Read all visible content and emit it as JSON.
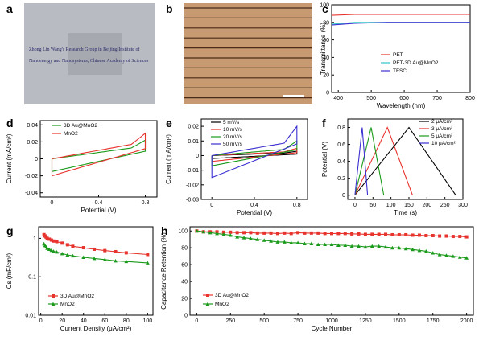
{
  "panel_labels": [
    "a",
    "b",
    "c",
    "d",
    "e",
    "f",
    "g",
    "h"
  ],
  "photo_a": {
    "lines": [
      "Zhong Lin Wang's Research Group in Beijing Institute of",
      "Nanoenergy and Nanosystems, Chinese Academy of Sciences"
    ]
  },
  "colors": {
    "red": "#e8322c",
    "teal": "#2ec4c6",
    "blue": "#3a2fd0",
    "green": "#1a9a1a",
    "black": "#000000"
  },
  "chart_data": [
    {
      "id": "c",
      "type": "line",
      "ylabel": "Transmittance (%)",
      "xlabel": "Wavelength (nm)",
      "xlim": [
        380,
        800
      ],
      "ylim": [
        0,
        100
      ],
      "xticks": [
        400,
        500,
        600,
        700,
        800
      ],
      "yticks": [
        0,
        20,
        40,
        60,
        80,
        100
      ],
      "series": [
        {
          "name": "PET",
          "color": "red",
          "x": [
            380,
            450,
            550,
            650,
            800
          ],
          "y": [
            88,
            89,
            89,
            89,
            89
          ]
        },
        {
          "name": "PET-3D Au@MnO2",
          "color": "teal",
          "x": [
            380,
            450,
            550,
            650,
            800
          ],
          "y": [
            78,
            80,
            80,
            80,
            80
          ]
        },
        {
          "name": "TFSC",
          "color": "blue",
          "x": [
            380,
            450,
            550,
            650,
            800
          ],
          "y": [
            77,
            79,
            80,
            80,
            80
          ]
        }
      ]
    },
    {
      "id": "d",
      "type": "line",
      "ylabel": "Current (mA/cm²)",
      "xlabel": "Potential (V)",
      "xlim": [
        -0.1,
        0.9
      ],
      "ylim": [
        -0.045,
        0.045
      ],
      "xticks": [
        0.0,
        0.4,
        0.8
      ],
      "yticks": [
        -0.04,
        -0.02,
        0.0,
        0.02,
        0.04
      ],
      "series": [
        {
          "name": "3D Au@MnO2",
          "color": "green",
          "type": "cv",
          "forward_start": 0.0,
          "forward_end": 0.015,
          "reverse_start": -0.015,
          "reverse_end": 0.009,
          "peak": 0.022
        },
        {
          "name": "MnO2",
          "color": "red",
          "type": "cv",
          "forward_start": 0.0,
          "forward_end": 0.02,
          "reverse_start": -0.02,
          "reverse_end": 0.012,
          "peak": 0.03
        }
      ]
    },
    {
      "id": "e",
      "type": "line",
      "ylabel": "Current (mA/cm²)",
      "xlabel": "Potential (V)",
      "xlim": [
        -0.1,
        0.9
      ],
      "ylim": [
        -0.03,
        0.025
      ],
      "xticks": [
        0.0,
        0.4,
        0.8
      ],
      "yticks": [
        -0.03,
        -0.02,
        -0.01,
        0.0,
        0.01,
        0.02
      ],
      "series": [
        {
          "name": "5 mV/s",
          "color": "black",
          "type": "cv",
          "forward_start": 0.0,
          "forward_end": 0.002,
          "reverse_start": -0.002,
          "reverse_end": 0.001,
          "peak": 0.003
        },
        {
          "name": "10 mV/s",
          "color": "red",
          "type": "cv",
          "forward_start": 0.0,
          "forward_end": 0.003,
          "reverse_start": -0.004,
          "reverse_end": 0.002,
          "peak": 0.005
        },
        {
          "name": "20 mV/s",
          "color": "green",
          "type": "cv",
          "forward_start": 0.0,
          "forward_end": 0.005,
          "reverse_start": -0.007,
          "reverse_end": 0.004,
          "peak": 0.01
        },
        {
          "name": "50 mV/s",
          "color": "blue",
          "type": "cv",
          "forward_start": 0.0,
          "forward_end": 0.01,
          "reverse_start": -0.015,
          "reverse_end": 0.008,
          "peak": 0.02
        }
      ]
    },
    {
      "id": "f",
      "type": "line",
      "ylabel": "Potential (V)",
      "xlabel": "Time (s)",
      "xlim": [
        -20,
        300
      ],
      "ylim": [
        -0.05,
        0.9
      ],
      "xticks": [
        0,
        50,
        100,
        150,
        200,
        250,
        300
      ],
      "yticks": [
        0.0,
        0.2,
        0.4,
        0.6,
        0.8
      ],
      "series": [
        {
          "name": "2 μA/cm²",
          "color": "black",
          "x": [
            0,
            150,
            280
          ],
          "y": [
            0,
            0.8,
            0
          ]
        },
        {
          "name": "3 μA/cm²",
          "color": "red",
          "x": [
            0,
            90,
            160
          ],
          "y": [
            0,
            0.8,
            0
          ]
        },
        {
          "name": "5 μA/cm²",
          "color": "green",
          "x": [
            0,
            45,
            80
          ],
          "y": [
            0,
            0.8,
            0
          ]
        },
        {
          "name": "10 μA/cm²",
          "color": "blue",
          "x": [
            0,
            20,
            35
          ],
          "y": [
            0,
            0.8,
            0
          ]
        }
      ]
    },
    {
      "id": "g",
      "type": "scatter",
      "ylabel": "Cs (mF/cm²)",
      "xlabel": "Current Density (μA/cm²)",
      "xlim": [
        -2,
        105
      ],
      "ylog": true,
      "ylim": [
        0.01,
        2
      ],
      "xticks": [
        0,
        20,
        40,
        60,
        80,
        100
      ],
      "yticks": [
        0.01,
        0.1,
        1
      ],
      "ytick_labels": [
        "0.01",
        "0.1",
        "1"
      ],
      "series": [
        {
          "name": "3D Au@MnO2",
          "color": "red",
          "marker": "square",
          "x": [
            3,
            4,
            5,
            6,
            8,
            10,
            12,
            15,
            20,
            25,
            30,
            40,
            50,
            60,
            70,
            80,
            100
          ],
          "y": [
            1.25,
            1.15,
            1.08,
            1.0,
            0.95,
            0.9,
            0.85,
            0.82,
            0.75,
            0.68,
            0.62,
            0.57,
            0.52,
            0.48,
            0.45,
            0.42,
            0.38
          ]
        },
        {
          "name": "MnO2",
          "color": "green",
          "marker": "triangle",
          "x": [
            3,
            4,
            5,
            6,
            8,
            10,
            12,
            15,
            20,
            25,
            30,
            40,
            50,
            60,
            70,
            80,
            100
          ],
          "y": [
            0.72,
            0.65,
            0.6,
            0.55,
            0.52,
            0.49,
            0.46,
            0.44,
            0.4,
            0.37,
            0.35,
            0.32,
            0.3,
            0.28,
            0.26,
            0.25,
            0.23
          ]
        }
      ]
    },
    {
      "id": "h",
      "type": "scatter",
      "ylabel": "Capacitance Retention (%)",
      "xlabel": "Cycle Number",
      "xlim": [
        -50,
        2050
      ],
      "ylim": [
        0,
        105
      ],
      "xticks": [
        0,
        250,
        500,
        750,
        1000,
        1250,
        1500,
        1750,
        2000
      ],
      "yticks": [
        0,
        20,
        40,
        60,
        80,
        100
      ],
      "series": [
        {
          "name": "3D Au@MnO2",
          "color": "red",
          "marker": "square",
          "x": [
            0,
            50,
            100,
            150,
            200,
            250,
            300,
            350,
            400,
            450,
            500,
            550,
            600,
            650,
            700,
            750,
            800,
            850,
            900,
            950,
            1000,
            1050,
            1100,
            1150,
            1200,
            1250,
            1300,
            1350,
            1400,
            1450,
            1500,
            1550,
            1600,
            1650,
            1700,
            1750,
            1800,
            1850,
            1900,
            1950,
            2000
          ],
          "y": [
            100,
            99,
            99,
            99,
            98.5,
            98.5,
            98,
            98,
            98,
            97.5,
            97.5,
            97.5,
            97,
            97.5,
            97,
            98,
            97.5,
            97.5,
            97.5,
            97,
            97,
            97,
            97,
            96.5,
            96.5,
            96,
            96,
            96,
            96,
            95.5,
            95.5,
            95.5,
            95,
            95,
            94.5,
            94.5,
            94,
            94,
            93.5,
            93.5,
            93
          ]
        },
        {
          "name": "MnO2",
          "color": "green",
          "marker": "triangle",
          "x": [
            0,
            50,
            100,
            150,
            200,
            250,
            300,
            350,
            400,
            450,
            500,
            550,
            600,
            650,
            700,
            750,
            800,
            850,
            900,
            950,
            1000,
            1050,
            1100,
            1150,
            1200,
            1250,
            1300,
            1350,
            1400,
            1450,
            1500,
            1550,
            1600,
            1650,
            1700,
            1750,
            1800,
            1850,
            1900,
            1950,
            2000
          ],
          "y": [
            100,
            99,
            98,
            97,
            96,
            95,
            93,
            92,
            91,
            90,
            89,
            88,
            87,
            87,
            86,
            86,
            85,
            85,
            84,
            84,
            84,
            83,
            83,
            82,
            82,
            81,
            82,
            82,
            81,
            80,
            80,
            79,
            78,
            77,
            76,
            74,
            72,
            71,
            70,
            69,
            68
          ]
        }
      ]
    }
  ]
}
